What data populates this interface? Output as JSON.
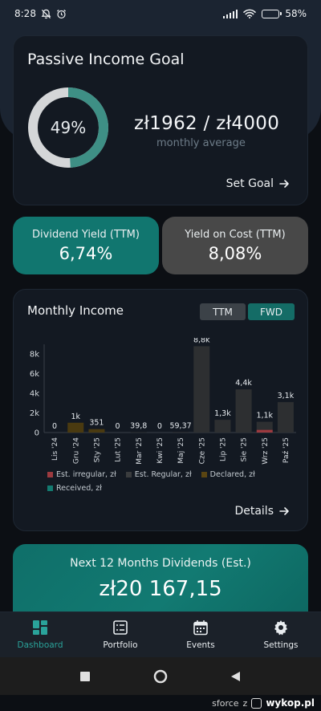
{
  "status_bar": {
    "time": "8:28",
    "battery": "58%",
    "battery_level": 0.58
  },
  "goal_card": {
    "title": "Passive Income Goal",
    "percent_label": "49%",
    "progress": 0.49,
    "amount": "zł1962 / zł4000",
    "subtitle": "monthly average",
    "set_goal": "Set Goal"
  },
  "yield_cards": [
    {
      "label": "Dividend Yield (TTM)",
      "value": "6,74%"
    },
    {
      "label": "Yield on Cost (TTM)",
      "value": "8,08%"
    }
  ],
  "monthly_income": {
    "title": "Monthly Income",
    "toggle": [
      "TTM",
      "FWD"
    ],
    "details": "Details"
  },
  "chart_data": {
    "type": "bar",
    "categories": [
      "Lis '24",
      "Gru '24",
      "Sty '25",
      "Lut '25",
      "Mar '25",
      "Kwi '25",
      "Maj '25",
      "Cze '25",
      "Lip '25",
      "Sie '25",
      "Wrz '25",
      "Paź '25"
    ],
    "value_labels": [
      "0",
      "1k",
      "351",
      "0",
      "39,8",
      "0",
      "59,37",
      "8,8k",
      "1,3k",
      "4,4k",
      "1,1k",
      "3,1k"
    ],
    "yticks": [
      "0",
      "2k",
      "4k",
      "6k",
      "8k"
    ],
    "ylim": [
      0,
      9000
    ],
    "legend": [
      "Est. irregular, zł",
      "Est. Regular, zł",
      "Declared, zł",
      "Received, zł"
    ],
    "series": [
      {
        "name": "Est. irregular, zł",
        "color": "#9c3a3f",
        "values": [
          0,
          0,
          0,
          0,
          0,
          0,
          0,
          0,
          0,
          0,
          280,
          0
        ]
      },
      {
        "name": "Est. Regular, zł",
        "color": "#2d2f31",
        "values": [
          0,
          0,
          0,
          0,
          39.8,
          0,
          59.37,
          8800,
          1300,
          4400,
          820,
          3100
        ]
      },
      {
        "name": "Declared, zł",
        "color": "#4a3a10",
        "values": [
          0,
          1000,
          351,
          0,
          0,
          0,
          0,
          0,
          0,
          0,
          0,
          0
        ]
      },
      {
        "name": "Received, zł",
        "color": "#137a70",
        "values": [
          0,
          0,
          0,
          0,
          0,
          0,
          0,
          0,
          0,
          0,
          0,
          0
        ]
      }
    ]
  },
  "next_card": {
    "label": "Next 12 Months Dividends (Est.)",
    "value": "zł20 167,15"
  },
  "nav": [
    {
      "label": "Dashboard",
      "icon": "dashboard-icon"
    },
    {
      "label": "Portfolio",
      "icon": "portfolio-icon"
    },
    {
      "label": "Events",
      "icon": "calendar-icon"
    },
    {
      "label": "Settings",
      "icon": "gear-icon"
    }
  ],
  "watermark": {
    "user": "sforce",
    "z": "z",
    "site": "wykop.pl"
  }
}
